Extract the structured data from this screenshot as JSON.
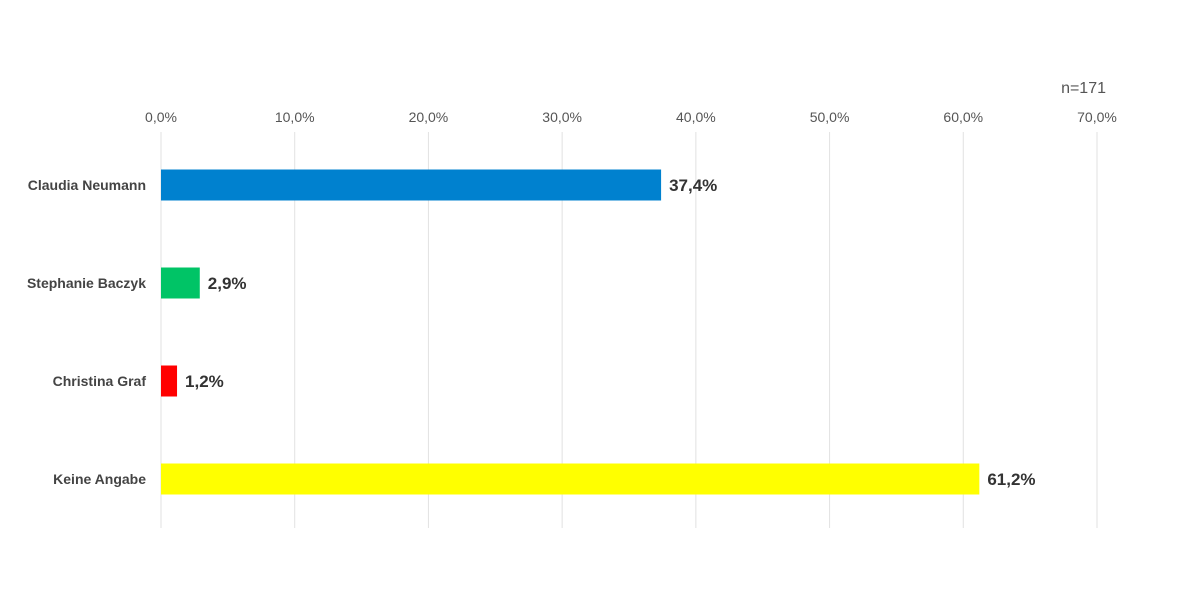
{
  "chart_data": {
    "type": "bar",
    "orientation": "horizontal",
    "note": "n=171",
    "categories": [
      "Claudia Neumann",
      "Stephanie Baczyk",
      "Christina Graf",
      "Keine Angabe"
    ],
    "values": [
      37.4,
      2.9,
      1.2,
      61.2
    ],
    "value_labels": [
      "37,4%",
      "2,9%",
      "1,2%",
      "61,2%"
    ],
    "colors": [
      "#0081CF",
      "#00C466",
      "#FF0000",
      "#FFFF00"
    ],
    "xlim": [
      0,
      70
    ],
    "xticks": [
      0,
      10,
      20,
      30,
      40,
      50,
      60,
      70
    ],
    "xtick_labels": [
      "0,0%",
      "10,0%",
      "20,0%",
      "30,0%",
      "40,0%",
      "50,0%",
      "60,0%",
      "70,0%"
    ],
    "x_axis_position": "top",
    "grid": true,
    "legend": false
  }
}
